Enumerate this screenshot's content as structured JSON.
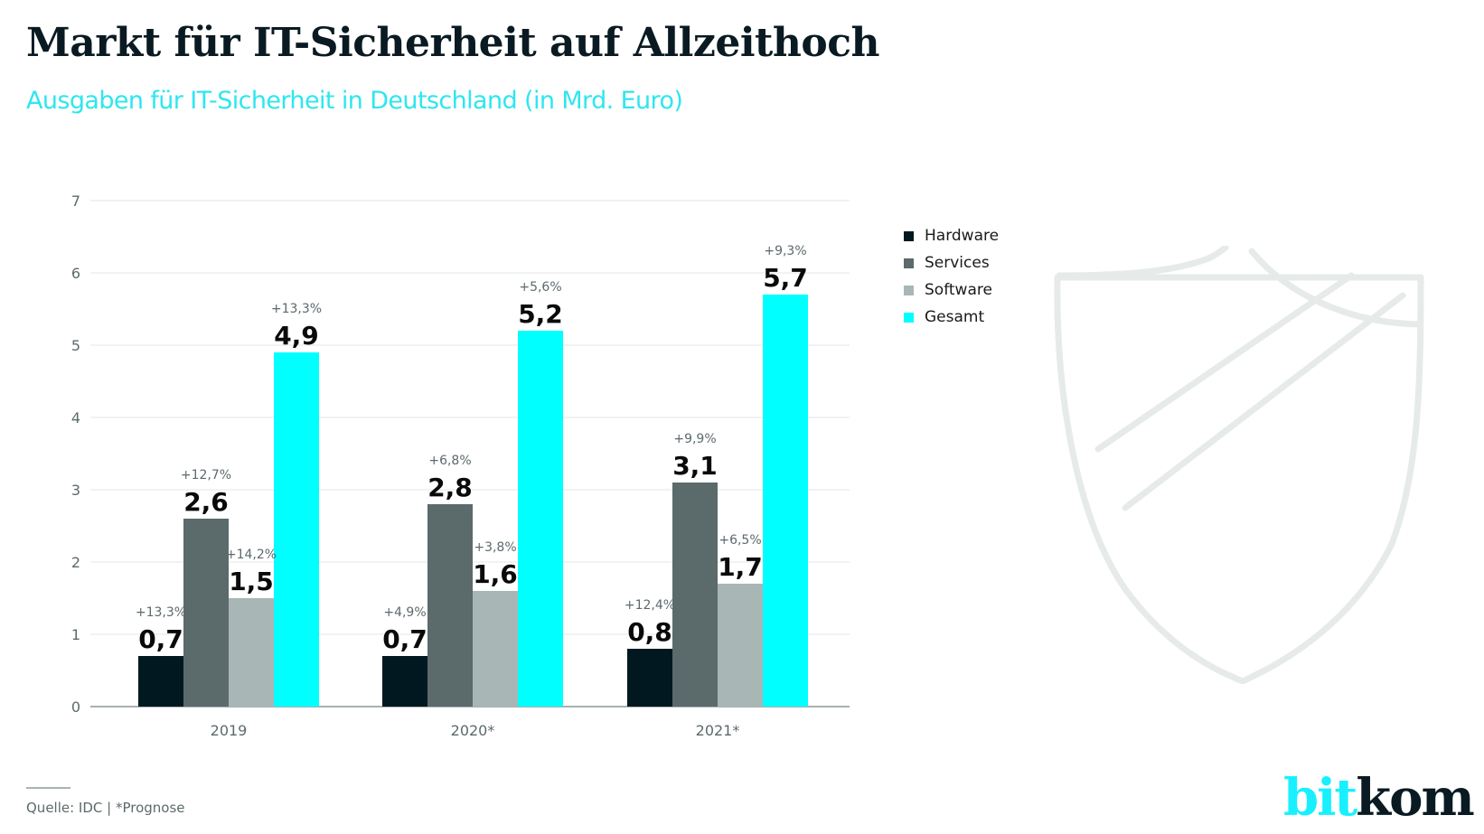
{
  "header": {
    "title": "Markt für IT-Sicherheit auf Allzeithoch",
    "subtitle": "Ausgaben für IT-Sicherheit in Deutschland (in Mrd. Euro)"
  },
  "footer": {
    "source": "Quelle: IDC | *Prognose",
    "logo_part1": "bit",
    "logo_part2": "kom"
  },
  "decoration": {
    "icon": "shield-icon"
  },
  "chart_data": {
    "type": "bar",
    "title": "Markt für IT-Sicherheit auf Allzeithoch",
    "subtitle": "Ausgaben für IT-Sicherheit in Deutschland (in Mrd. Euro)",
    "xlabel": "",
    "ylabel": "",
    "categories": [
      "2019",
      "2020*",
      "2021*"
    ],
    "ylim": [
      0,
      7
    ],
    "yticks": [
      "0",
      "1",
      "2",
      "3",
      "4",
      "5",
      "6",
      "7"
    ],
    "grid": true,
    "legend_position": "right",
    "series": [
      {
        "name": "Hardware",
        "color": "#021820",
        "values": [
          0.7,
          0.7,
          0.8
        ],
        "value_labels": [
          "0,7",
          "0,7",
          "0,8"
        ],
        "growth_labels": [
          "+13,3%",
          "+4,9%",
          "+12,4%"
        ]
      },
      {
        "name": "Services",
        "color": "#5b6a6b",
        "values": [
          2.6,
          2.8,
          3.1
        ],
        "value_labels": [
          "2,6",
          "2,8",
          "3,1"
        ],
        "growth_labels": [
          "+12,7%",
          "+6,8%",
          "+9,9%"
        ]
      },
      {
        "name": "Software",
        "color": "#a8b6b6",
        "values": [
          1.5,
          1.6,
          1.7
        ],
        "value_labels": [
          "1,5",
          "1,6",
          "1,7"
        ],
        "growth_labels": [
          "+14,2%",
          "+3,8%",
          "+6,5%"
        ]
      },
      {
        "name": "Gesamt",
        "color": "#00ffff",
        "values": [
          4.9,
          5.2,
          5.7
        ],
        "value_labels": [
          "4,9",
          "5,2",
          "5,7"
        ],
        "growth_labels": [
          "+13,3%",
          "+5,6%",
          "+9,3%"
        ]
      }
    ]
  }
}
